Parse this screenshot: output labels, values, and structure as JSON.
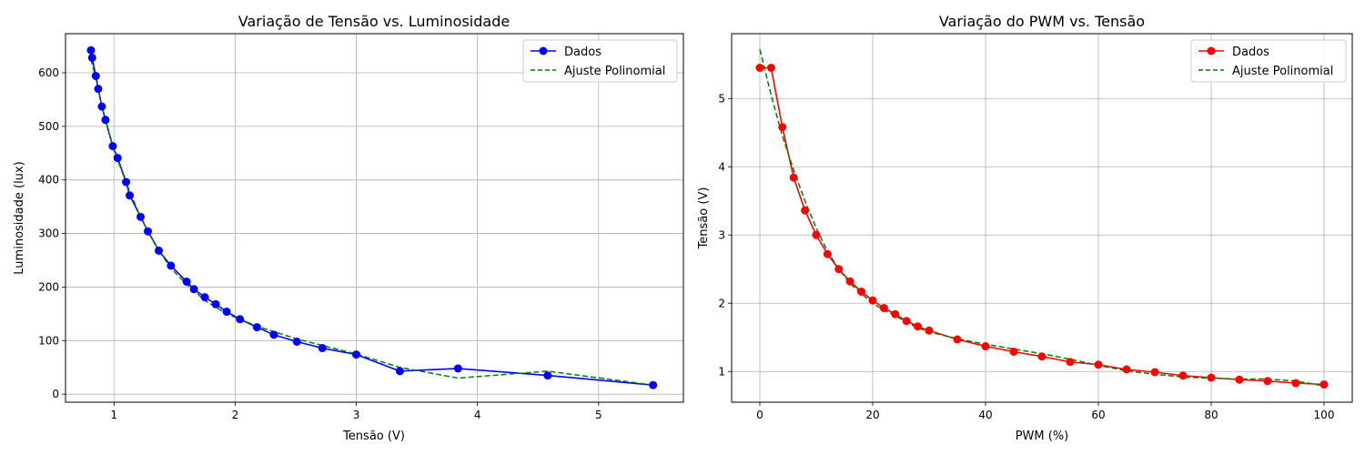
{
  "chart_data": [
    {
      "type": "line",
      "title": "Variação de Tensão vs. Luminosidade",
      "xlabel": "Tensão (V)",
      "ylabel": "Luminosidade (lux)",
      "xlim": [
        0.6,
        5.7
      ],
      "ylim": [
        -15,
        673
      ],
      "xticks": [
        1,
        2,
        3,
        4,
        5
      ],
      "yticks": [
        0,
        100,
        200,
        300,
        400,
        500,
        600
      ],
      "grid": true,
      "legend_position": "top-right",
      "series": [
        {
          "name": "Dados",
          "style": "solid-with-markers",
          "color": "#0000ff",
          "x": [
            0.81,
            0.82,
            0.85,
            0.87,
            0.9,
            0.93,
            0.99,
            1.03,
            1.1,
            1.13,
            1.22,
            1.28,
            1.37,
            1.47,
            1.6,
            1.66,
            1.75,
            1.84,
            1.93,
            2.04,
            2.18,
            2.32,
            2.51,
            2.72,
            3.0,
            3.36,
            3.84,
            4.58,
            5.45
          ],
          "y": [
            642,
            628,
            594,
            570,
            537,
            512,
            463,
            441,
            396,
            371,
            331,
            304,
            268,
            240,
            210,
            196,
            181,
            168,
            154,
            140,
            125,
            111,
            98,
            86,
            74,
            43,
            48,
            35,
            17
          ]
        },
        {
          "name": "Ajuste Polinomial",
          "style": "dashed",
          "color": "#008000",
          "x": [
            0.81,
            0.85,
            0.9,
            0.99,
            1.1,
            1.22,
            1.37,
            1.47,
            1.6,
            1.75,
            1.93,
            2.18,
            2.51,
            3.0,
            3.36,
            3.84,
            4.58,
            5.45
          ],
          "y": [
            625,
            590,
            538,
            462,
            395,
            330,
            268,
            235,
            205,
            175,
            150,
            127,
            103,
            75,
            50,
            30,
            43,
            17
          ]
        }
      ]
    },
    {
      "type": "line",
      "title": "Variação do PWM vs. Tensão",
      "xlabel": "PWM (%)",
      "ylabel": "Tensão (V)",
      "xlim": [
        -5,
        105
      ],
      "ylim": [
        0.55,
        5.95
      ],
      "xticks": [
        0,
        20,
        40,
        60,
        80,
        100
      ],
      "yticks": [
        1,
        2,
        3,
        4,
        5
      ],
      "grid": true,
      "legend_position": "top-right",
      "series": [
        {
          "name": "Dados",
          "style": "solid-with-markers",
          "color": "#ff0000",
          "x": [
            0,
            2,
            4,
            6,
            8,
            10,
            12,
            14,
            16,
            18,
            20,
            22,
            24,
            26,
            28,
            30,
            35,
            40,
            45,
            50,
            55,
            60,
            65,
            70,
            75,
            80,
            85,
            90,
            95,
            100
          ],
          "y": [
            5.45,
            5.45,
            4.58,
            3.84,
            3.36,
            3.0,
            2.72,
            2.5,
            2.32,
            2.17,
            2.04,
            1.93,
            1.84,
            1.74,
            1.66,
            1.6,
            1.47,
            1.37,
            1.29,
            1.22,
            1.14,
            1.1,
            1.03,
            0.99,
            0.94,
            0.91,
            0.88,
            0.86,
            0.83,
            0.81
          ]
        },
        {
          "name": "Ajuste Polinomial",
          "style": "dashed",
          "color": "#008000",
          "x": [
            0,
            2,
            4,
            6,
            8,
            10,
            12,
            14,
            16,
            18,
            20,
            22,
            24,
            26,
            28,
            30,
            35,
            40,
            45,
            50,
            55,
            60,
            65,
            70,
            75,
            80,
            85,
            90,
            95,
            100
          ],
          "y": [
            5.72,
            5.05,
            4.45,
            3.95,
            3.5,
            3.1,
            2.76,
            2.5,
            2.29,
            2.14,
            2.0,
            1.9,
            1.82,
            1.72,
            1.64,
            1.58,
            1.48,
            1.4,
            1.33,
            1.26,
            1.18,
            1.09,
            1.01,
            0.96,
            0.92,
            0.9,
            0.89,
            0.89,
            0.86,
            0.79
          ]
        }
      ]
    }
  ]
}
